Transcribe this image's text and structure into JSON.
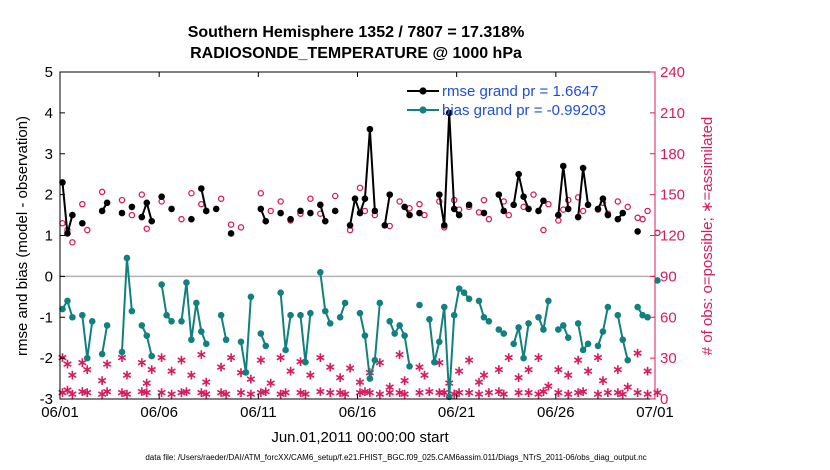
{
  "chart_data": {
    "type": "line",
    "title": "Southern Hemisphere 1352 / 7807 = 17.318%",
    "subtitle": "RADIOSONDE_TEMPERATURE @ 1000 hPa",
    "xlabel": "Jun.01,2011 00:00:00 start",
    "ylabel_left": "rmse and bias (model - observation)",
    "ylabel_right": "# of obs: o=possible; ∗=assimilated",
    "footnote": "data file: /Users/raeder/DAI/ATM_forcXX/CAM6_setup/f.e21.FHIST_BGC.f09_025.CAM6assim.011/Diags_NTrS_2011-06/obs_diag_output.nc",
    "x_ticks": [
      "06/01",
      "06/06",
      "06/11",
      "06/16",
      "06/21",
      "06/26",
      "07/01"
    ],
    "x_tick_days": [
      0,
      5,
      10,
      15,
      20,
      25,
      30
    ],
    "x_range_days": [
      0,
      30
    ],
    "ylim_left": [
      -3,
      5
    ],
    "y_ticks_left": [
      "-3",
      "-2",
      "-1",
      "0",
      "1",
      "2",
      "3",
      "4",
      "5"
    ],
    "ylim_right": [
      0,
      240
    ],
    "y_ticks_right": [
      "0",
      "30",
      "60",
      "90",
      "120",
      "150",
      "180",
      "210",
      "240"
    ],
    "zero_line": 0,
    "legend": {
      "position": "top-right"
    },
    "colors": {
      "rmse": "#000000",
      "bias": "#138080",
      "counts": "#d81b60",
      "legend_text": "#1f4fd6",
      "zero_line": "#b3b3b3"
    },
    "series": [
      {
        "name": "rmse grand pr = 1.6647",
        "role": "rmse",
        "points": [
          [
            0.125,
            2.3
          ],
          [
            0.375,
            1.05
          ],
          [
            0.625,
            1.5
          ],
          [
            1.125,
            1.3
          ],
          [
            2.125,
            1.6
          ],
          [
            2.375,
            1.8
          ],
          [
            3.125,
            1.55
          ],
          [
            3.625,
            1.7
          ],
          [
            4.125,
            1.45
          ],
          [
            4.375,
            1.8
          ],
          [
            4.625,
            1.35
          ],
          [
            5.125,
            1.95
          ],
          [
            5.625,
            1.65
          ],
          [
            6.625,
            1.4
          ],
          [
            7.125,
            2.15
          ],
          [
            7.375,
            1.6
          ],
          [
            7.875,
            1.65
          ],
          [
            8.625,
            1.05
          ],
          [
            10.125,
            1.65
          ],
          [
            10.375,
            1.35
          ],
          [
            11.125,
            1.55
          ],
          [
            11.625,
            1.4
          ],
          [
            12.125,
            1.6
          ],
          [
            12.625,
            1.55
          ],
          [
            13.125,
            1.75
          ],
          [
            13.375,
            1.35
          ],
          [
            13.875,
            1.6
          ],
          [
            14.625,
            1.25
          ],
          [
            14.875,
            1.9
          ],
          [
            15.125,
            1.55
          ],
          [
            15.375,
            1.9
          ],
          [
            15.625,
            3.6
          ],
          [
            15.875,
            1.6
          ],
          [
            16.375,
            1.25
          ],
          [
            16.625,
            2.0
          ],
          [
            17.375,
            1.7
          ],
          [
            17.625,
            1.5
          ],
          [
            18.125,
            1.55
          ],
          [
            19.125,
            2.0
          ],
          [
            19.375,
            1.25
          ],
          [
            19.625,
            4.0
          ],
          [
            19.875,
            1.65
          ],
          [
            20.125,
            1.5
          ],
          [
            20.625,
            1.75
          ],
          [
            21.375,
            1.55
          ],
          [
            22.125,
            2.0
          ],
          [
            22.375,
            1.6
          ],
          [
            22.875,
            1.75
          ],
          [
            23.125,
            2.5
          ],
          [
            23.375,
            1.95
          ],
          [
            23.625,
            1.65
          ],
          [
            24.125,
            1.6
          ],
          [
            24.375,
            1.85
          ],
          [
            25.125,
            1.5
          ],
          [
            25.375,
            2.7
          ],
          [
            25.625,
            1.65
          ],
          [
            26.125,
            1.45
          ],
          [
            26.375,
            2.65
          ],
          [
            26.625,
            1.75
          ],
          [
            27.125,
            1.65
          ],
          [
            27.375,
            1.9
          ],
          [
            27.625,
            1.5
          ],
          [
            28.125,
            1.4
          ],
          [
            28.375,
            1.55
          ],
          [
            29.125,
            1.1
          ]
        ]
      },
      {
        "name": "bias grand pr = -0.99203",
        "role": "bias",
        "points": [
          [
            0.125,
            -0.8
          ],
          [
            0.375,
            -0.6
          ],
          [
            0.625,
            -1.0
          ],
          [
            1.125,
            -0.95
          ],
          [
            1.375,
            -2.0
          ],
          [
            1.625,
            -1.1
          ],
          [
            2.125,
            -1.9
          ],
          [
            2.375,
            -1.2
          ],
          [
            3.125,
            -1.85
          ],
          [
            3.375,
            0.45
          ],
          [
            3.625,
            -0.85
          ],
          [
            4.125,
            -1.2
          ],
          [
            4.375,
            -1.45
          ],
          [
            4.625,
            -1.95
          ],
          [
            5.125,
            -0.2
          ],
          [
            5.375,
            -0.95
          ],
          [
            5.625,
            -1.1
          ],
          [
            6.125,
            -1.1
          ],
          [
            6.375,
            -0.15
          ],
          [
            6.625,
            -1.55
          ],
          [
            6.875,
            -0.65
          ],
          [
            7.125,
            -1.35
          ],
          [
            7.375,
            -1.65
          ],
          [
            8.125,
            -0.95
          ],
          [
            8.375,
            -1.55
          ],
          [
            9.125,
            -1.6
          ],
          [
            9.375,
            -2.35
          ],
          [
            9.625,
            -0.5
          ],
          [
            10.125,
            -1.4
          ],
          [
            10.375,
            -1.7
          ],
          [
            11.125,
            -0.4
          ],
          [
            11.375,
            -1.8
          ],
          [
            11.625,
            -0.95
          ],
          [
            12.125,
            -0.95
          ],
          [
            12.375,
            -2.1
          ],
          [
            12.625,
            -0.9
          ],
          [
            13.125,
            0.1
          ],
          [
            13.375,
            -0.85
          ],
          [
            13.625,
            -1.15
          ],
          [
            14.125,
            -1.0
          ],
          [
            14.375,
            -0.65
          ],
          [
            15.125,
            -0.9
          ],
          [
            15.375,
            -1.45
          ],
          [
            15.625,
            -2.5
          ],
          [
            15.875,
            -2.05
          ],
          [
            16.125,
            -0.65
          ],
          [
            16.625,
            -1.1
          ],
          [
            16.875,
            -1.4
          ],
          [
            17.125,
            -1.2
          ],
          [
            17.375,
            -1.45
          ],
          [
            17.625,
            -2.2
          ],
          [
            18.125,
            -0.7
          ],
          [
            18.625,
            -1.05
          ],
          [
            18.875,
            -2.1
          ],
          [
            19.125,
            -1.6
          ],
          [
            19.375,
            -0.75
          ],
          [
            19.625,
            -2.95
          ],
          [
            19.875,
            -0.95
          ],
          [
            20.125,
            -0.3
          ],
          [
            20.375,
            -0.4
          ],
          [
            20.625,
            -0.55
          ],
          [
            21.125,
            -0.6
          ],
          [
            21.375,
            -1.0
          ],
          [
            21.625,
            -1.1
          ],
          [
            22.125,
            -1.3
          ],
          [
            22.375,
            -1.4
          ],
          [
            22.875,
            -1.65
          ],
          [
            23.125,
            -1.25
          ],
          [
            23.375,
            -2.0
          ],
          [
            23.625,
            -1.15
          ],
          [
            24.125,
            -1.0
          ],
          [
            24.375,
            -1.3
          ],
          [
            24.625,
            -0.6
          ],
          [
            25.125,
            -1.3
          ],
          [
            25.375,
            -1.2
          ],
          [
            25.625,
            -1.5
          ],
          [
            26.125,
            -1.15
          ],
          [
            26.375,
            -1.8
          ],
          [
            26.625,
            -1.65
          ],
          [
            27.125,
            -1.7
          ],
          [
            27.375,
            -1.35
          ],
          [
            27.625,
            -0.75
          ],
          [
            28.125,
            -0.95
          ],
          [
            28.375,
            -1.55
          ],
          [
            28.625,
            -2.05
          ],
          [
            29.125,
            -0.75
          ],
          [
            29.375,
            -0.95
          ],
          [
            29.625,
            -1.0
          ],
          [
            30.125,
            -0.1
          ]
        ]
      }
    ],
    "obs_possible": [
      [
        0.125,
        129
      ],
      [
        0.375,
        124
      ],
      [
        0.625,
        115
      ],
      [
        1.125,
        143
      ],
      [
        1.375,
        124
      ],
      [
        2.125,
        152
      ],
      [
        3.125,
        146
      ],
      [
        3.625,
        135
      ],
      [
        4.125,
        150
      ],
      [
        4.375,
        125
      ],
      [
        5.125,
        145
      ],
      [
        6.125,
        132
      ],
      [
        6.625,
        151
      ],
      [
        7.125,
        143
      ],
      [
        7.375,
        138
      ],
      [
        8.125,
        147
      ],
      [
        8.625,
        128
      ],
      [
        9.125,
        126
      ],
      [
        10.125,
        151
      ],
      [
        10.625,
        138
      ],
      [
        11.125,
        145
      ],
      [
        11.625,
        131
      ],
      [
        12.125,
        136
      ],
      [
        12.625,
        147
      ],
      [
        13.125,
        136
      ],
      [
        13.875,
        149
      ],
      [
        14.625,
        124
      ],
      [
        15.125,
        155
      ],
      [
        15.375,
        138
      ],
      [
        15.875,
        135
      ],
      [
        16.625,
        127
      ],
      [
        17.125,
        145
      ],
      [
        17.625,
        140
      ],
      [
        18.125,
        143
      ],
      [
        18.375,
        135
      ],
      [
        19.125,
        145
      ],
      [
        19.375,
        126
      ],
      [
        19.875,
        146
      ],
      [
        20.125,
        139
      ],
      [
        20.625,
        141
      ],
      [
        21.125,
        137
      ],
      [
        21.375,
        146
      ],
      [
        21.625,
        132
      ],
      [
        22.375,
        145
      ],
      [
        22.625,
        135
      ],
      [
        23.375,
        141
      ],
      [
        23.875,
        150
      ],
      [
        24.375,
        124
      ],
      [
        24.625,
        143
      ],
      [
        25.125,
        131
      ],
      [
        25.375,
        139
      ],
      [
        25.625,
        146
      ],
      [
        26.125,
        148
      ],
      [
        26.375,
        138
      ],
      [
        27.125,
        139
      ],
      [
        27.375,
        144
      ],
      [
        27.625,
        136
      ],
      [
        28.125,
        145
      ],
      [
        28.625,
        141
      ],
      [
        29.125,
        133
      ],
      [
        29.375,
        132
      ],
      [
        29.625,
        138
      ],
      [
        30.125,
        122
      ]
    ],
    "obs_assimilated": [
      [
        0.125,
        5
      ],
      [
        0.375,
        7
      ],
      [
        0.625,
        4
      ],
      [
        1.125,
        6
      ],
      [
        1.375,
        5
      ],
      [
        2.125,
        4
      ],
      [
        2.375,
        6
      ],
      [
        3.125,
        5
      ],
      [
        3.375,
        4
      ],
      [
        4.125,
        6
      ],
      [
        4.375,
        5
      ],
      [
        5.125,
        5
      ],
      [
        5.625,
        4
      ],
      [
        6.125,
        5
      ],
      [
        6.375,
        6
      ],
      [
        7.125,
        5
      ],
      [
        7.375,
        4
      ],
      [
        8.125,
        5
      ],
      [
        8.375,
        4
      ],
      [
        9.125,
        5
      ],
      [
        9.625,
        4
      ],
      [
        10.125,
        5
      ],
      [
        10.375,
        6
      ],
      [
        11.125,
        4
      ],
      [
        11.375,
        5
      ],
      [
        12.125,
        5
      ],
      [
        12.375,
        4
      ],
      [
        13.125,
        6
      ],
      [
        13.625,
        5
      ],
      [
        14.125,
        5
      ],
      [
        14.375,
        4
      ],
      [
        15.125,
        5
      ],
      [
        15.375,
        6
      ],
      [
        15.625,
        5
      ],
      [
        16.125,
        4
      ],
      [
        16.625,
        5
      ],
      [
        17.125,
        5
      ],
      [
        17.375,
        4
      ],
      [
        18.125,
        5
      ],
      [
        18.625,
        6
      ],
      [
        19.125,
        5
      ],
      [
        19.375,
        5
      ],
      [
        19.875,
        4
      ],
      [
        20.125,
        5
      ],
      [
        20.625,
        5
      ],
      [
        21.125,
        4
      ],
      [
        21.625,
        5
      ],
      [
        22.125,
        6
      ],
      [
        22.375,
        4
      ],
      [
        23.125,
        5
      ],
      [
        23.625,
        5
      ],
      [
        24.125,
        4
      ],
      [
        24.375,
        6
      ],
      [
        25.125,
        5
      ],
      [
        25.625,
        4
      ],
      [
        26.125,
        5
      ],
      [
        26.375,
        6
      ],
      [
        27.125,
        4
      ],
      [
        27.625,
        5
      ],
      [
        28.125,
        5
      ],
      [
        28.375,
        4
      ],
      [
        29.125,
        5
      ],
      [
        29.625,
        4
      ],
      [
        30.125,
        5
      ],
      [
        0.125,
        31
      ],
      [
        0.375,
        26
      ],
      [
        0.625,
        18
      ],
      [
        1.125,
        27
      ],
      [
        1.375,
        22
      ],
      [
        2.125,
        14
      ],
      [
        2.375,
        26
      ],
      [
        3.125,
        31
      ],
      [
        3.375,
        18
      ],
      [
        4.125,
        27
      ],
      [
        4.375,
        12
      ],
      [
        4.625,
        22
      ],
      [
        5.125,
        31
      ],
      [
        5.625,
        21
      ],
      [
        6.125,
        29
      ],
      [
        6.625,
        18
      ],
      [
        7.125,
        33
      ],
      [
        7.375,
        13
      ],
      [
        8.125,
        24
      ],
      [
        8.625,
        31
      ],
      [
        9.125,
        20
      ],
      [
        9.625,
        15
      ],
      [
        10.125,
        29
      ],
      [
        10.625,
        12
      ],
      [
        11.125,
        31
      ],
      [
        11.625,
        21
      ],
      [
        12.125,
        28
      ],
      [
        12.625,
        18
      ],
      [
        13.125,
        31
      ],
      [
        13.625,
        24
      ],
      [
        14.125,
        16
      ],
      [
        14.625,
        23
      ],
      [
        15.125,
        13
      ],
      [
        15.625,
        20
      ],
      [
        16.125,
        27
      ],
      [
        16.625,
        9
      ],
      [
        17.125,
        33
      ],
      [
        17.375,
        14
      ],
      [
        18.125,
        24
      ],
      [
        18.375,
        18
      ],
      [
        19.125,
        27
      ],
      [
        19.625,
        12
      ],
      [
        20.125,
        21
      ],
      [
        20.625,
        29
      ],
      [
        21.125,
        13
      ],
      [
        21.375,
        18
      ],
      [
        22.125,
        22
      ],
      [
        22.625,
        31
      ],
      [
        23.125,
        16
      ],
      [
        23.625,
        22
      ],
      [
        24.125,
        31
      ],
      [
        24.625,
        10
      ],
      [
        25.125,
        22
      ],
      [
        25.625,
        18
      ],
      [
        26.125,
        29
      ],
      [
        26.625,
        21
      ],
      [
        27.125,
        31
      ],
      [
        27.375,
        14
      ],
      [
        28.125,
        22
      ],
      [
        28.625,
        9
      ],
      [
        29.125,
        34
      ],
      [
        29.625,
        21
      ]
    ]
  }
}
